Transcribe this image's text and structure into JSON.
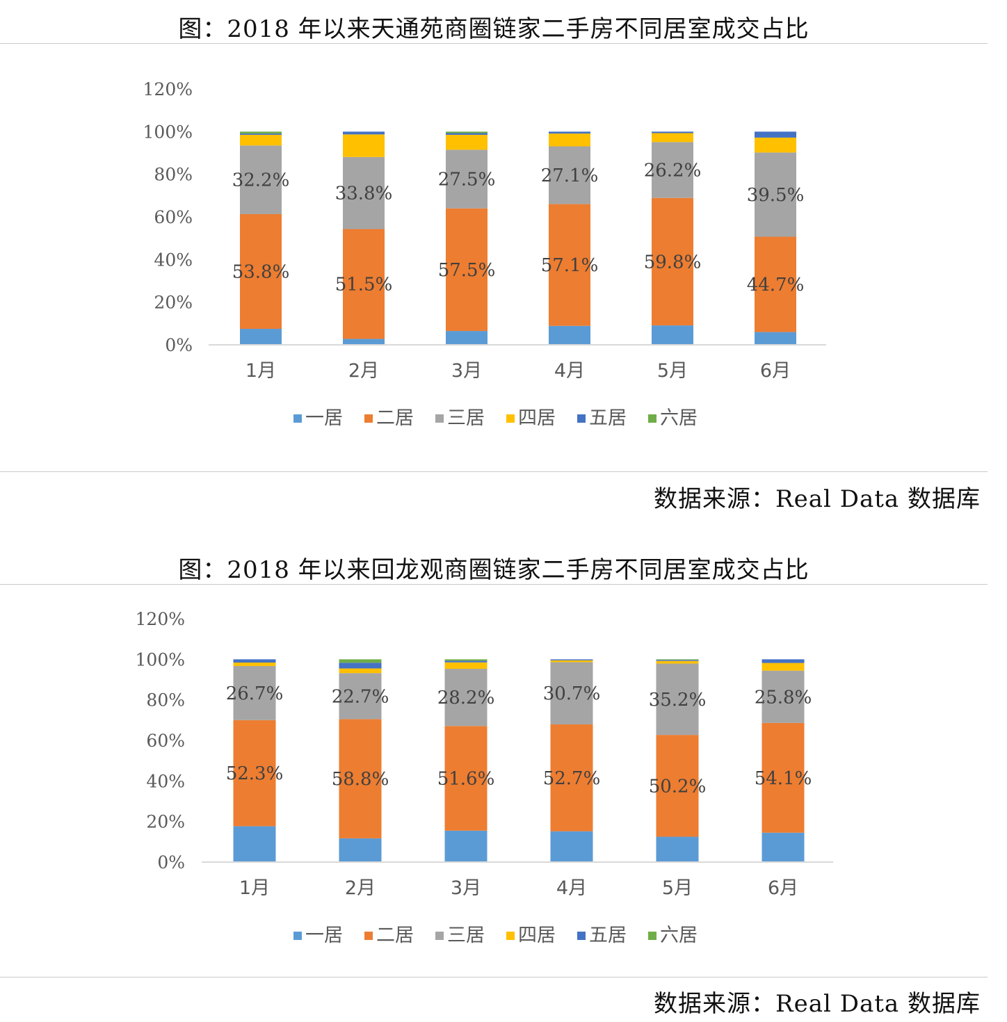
{
  "charts": [
    {
      "caption": "图：2018 年以来天通苑商圈链家二手房不同居室成交占比",
      "source": "数据来源：Real Data 数据库"
    },
    {
      "caption": "图：2018 年以来回龙观商圈链家二手房不同居室成交占比",
      "source": "数据来源：Real Data 数据库"
    }
  ],
  "chart_data": [
    {
      "type": "bar",
      "stacked": true,
      "categories": [
        "1月",
        "2月",
        "3月",
        "4月",
        "5月",
        "6月"
      ],
      "ylim": [
        0,
        120
      ],
      "yticks": [
        "0%",
        "20%",
        "40%",
        "60%",
        "80%",
        "100%",
        "120%"
      ],
      "grid": false,
      "legend_position": "bottom",
      "series": [
        {
          "name": "一居",
          "color": "#5b9bd5",
          "values": [
            7.5,
            2.8,
            6.5,
            8.9,
            9.1,
            6.0
          ],
          "labels": [
            "",
            "",
            "",
            "",
            "",
            ""
          ]
        },
        {
          "name": "二居",
          "color": "#ed7d31",
          "values": [
            53.8,
            51.5,
            57.5,
            57.1,
            59.8,
            44.7
          ],
          "labels": [
            "53.8%",
            "51.5%",
            "57.5%",
            "57.1%",
            "59.8%",
            "44.7%"
          ]
        },
        {
          "name": "三居",
          "color": "#a5a5a5",
          "values": [
            32.2,
            33.8,
            27.5,
            27.1,
            26.2,
            39.5
          ],
          "labels": [
            "32.2%",
            "33.8%",
            "27.5%",
            "27.1%",
            "26.2%",
            "39.5%"
          ]
        },
        {
          "name": "四居",
          "color": "#ffc000",
          "values": [
            5.0,
            10.6,
            7.0,
            6.0,
            4.2,
            7.0
          ],
          "labels": [
            "",
            "",
            "",
            "",
            "",
            ""
          ]
        },
        {
          "name": "五居",
          "color": "#4472c4",
          "values": [
            0.6,
            1.3,
            0.8,
            0.9,
            0.7,
            2.8
          ],
          "labels": [
            "",
            "",
            "",
            "",
            "",
            ""
          ]
        },
        {
          "name": "六居",
          "color": "#70ad47",
          "values": [
            0.9,
            0,
            0.7,
            0,
            0,
            0
          ],
          "labels": [
            "",
            "",
            "",
            "",
            "",
            ""
          ]
        }
      ]
    },
    {
      "type": "bar",
      "stacked": true,
      "categories": [
        "1月",
        "2月",
        "3月",
        "4月",
        "5月",
        "6月"
      ],
      "ylim": [
        0,
        120
      ],
      "yticks": [
        "0%",
        "20%",
        "40%",
        "60%",
        "80%",
        "100%",
        "120%"
      ],
      "grid": false,
      "legend_position": "bottom",
      "series": [
        {
          "name": "一居",
          "color": "#5b9bd5",
          "values": [
            17.7,
            11.7,
            15.5,
            15.2,
            12.5,
            14.5
          ],
          "labels": [
            "",
            "",
            "",
            "",
            "",
            ""
          ]
        },
        {
          "name": "二居",
          "color": "#ed7d31",
          "values": [
            52.3,
            58.8,
            51.6,
            52.7,
            50.2,
            54.1
          ],
          "labels": [
            "52.3%",
            "58.8%",
            "51.6%",
            "52.7%",
            "50.2%",
            "54.1%"
          ]
        },
        {
          "name": "三居",
          "color": "#a5a5a5",
          "values": [
            26.7,
            22.7,
            28.2,
            30.7,
            35.2,
            25.8
          ],
          "labels": [
            "26.7%",
            "22.7%",
            "28.2%",
            "30.7%",
            "35.2%",
            "25.8%"
          ]
        },
        {
          "name": "四居",
          "color": "#ffc000",
          "values": [
            1.7,
            2.3,
            3.2,
            0.9,
            1.3,
            3.8
          ],
          "labels": [
            "",
            "",
            "",
            "",
            "",
            ""
          ]
        },
        {
          "name": "五居",
          "color": "#4472c4",
          "values": [
            1.6,
            2.8,
            0.8,
            0.5,
            0.5,
            1.8
          ],
          "labels": [
            "",
            "",
            "",
            "",
            "",
            ""
          ]
        },
        {
          "name": "六居",
          "color": "#70ad47",
          "values": [
            0,
            1.7,
            0.7,
            0,
            0.3,
            0
          ],
          "labels": [
            "",
            "",
            "",
            "",
            "",
            ""
          ]
        }
      ]
    }
  ]
}
